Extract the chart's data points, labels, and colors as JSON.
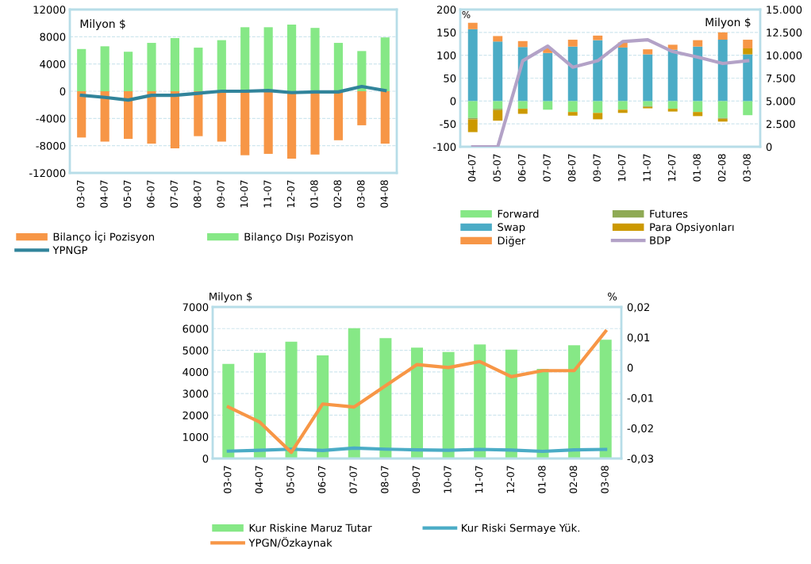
{
  "chart_data": [
    {
      "type": "bar",
      "stacked": true,
      "ylabel": "Milyon $",
      "categories": [
        "03-07",
        "04-07",
        "05-07",
        "06-07",
        "07-07",
        "08-07",
        "09-07",
        "10-07",
        "11-07",
        "12-07",
        "01-08",
        "02-08",
        "03-08",
        "04-08"
      ],
      "series": [
        {
          "name": "Bilanço İçi Pozisyon",
          "color": "#f79646",
          "values": [
            -6800,
            -7400,
            -7000,
            -7700,
            -8400,
            -6600,
            -7400,
            -9400,
            -9200,
            -9900,
            -9300,
            -7200,
            -5000,
            -7700
          ]
        },
        {
          "name": "Bilanço Dışı Pozisyon",
          "color": "#86e886",
          "values": [
            6200,
            6600,
            5800,
            7100,
            7800,
            6400,
            7500,
            9400,
            9400,
            9800,
            9300,
            7100,
            5900,
            7900
          ]
        },
        {
          "name": "YPNGP",
          "type": "line",
          "color": "#31849b",
          "values": [
            -600,
            -900,
            -1300,
            -600,
            -600,
            -300,
            0,
            0,
            100,
            -200,
            -100,
            -100,
            700,
            100
          ]
        }
      ],
      "ylim": [
        -12000,
        12000
      ],
      "yticks": [
        -12000,
        -8000,
        -4000,
        0,
        4000,
        8000,
        12000
      ],
      "grid": "y",
      "legend": "bottom",
      "marker": "none",
      "line_style": "solid"
    },
    {
      "type": "bar",
      "stacked": true,
      "ylabel": "%",
      "y2label": "Milyon $",
      "categories": [
        "04-07",
        "05-07",
        "06-07",
        "07-07",
        "08-07",
        "09-07",
        "10-07",
        "11-07",
        "12-07",
        "01-08",
        "02-08",
        "03-08"
      ],
      "series": [
        {
          "name": "Forward",
          "color": "#86e886",
          "values": [
            -37,
            -17,
            -17,
            -19,
            -24,
            -26,
            -19,
            -11,
            -17,
            -24,
            -37,
            -31
          ]
        },
        {
          "name": "Futures",
          "color": "#8faa55",
          "values": [
            -3,
            -3,
            null,
            null,
            null,
            null,
            null,
            -2,
            null,
            null,
            -2,
            null
          ]
        },
        {
          "name": "Swap",
          "color": "#4bacc6",
          "values": [
            157,
            130,
            118,
            105,
            119,
            133,
            117,
            102,
            112,
            119,
            134,
            102
          ]
        },
        {
          "name": "Para Opsiyonları",
          "color": "#cc9900",
          "values": [
            -28,
            -23,
            -11,
            null,
            -8,
            -14,
            -7,
            -3,
            -6,
            -9,
            -6,
            13
          ]
        },
        {
          "name": "Diğer",
          "color": "#f79646",
          "values": [
            14,
            12,
            13,
            11,
            15,
            10,
            11,
            11,
            11,
            14,
            16,
            19
          ]
        },
        {
          "name": "BDP",
          "type": "line",
          "axis": "y2",
          "color": "#b3a2c7",
          "values": [
            0,
            0,
            9400,
            11000,
            8700,
            9400,
            11500,
            11700,
            10400,
            9800,
            9100,
            9400
          ]
        }
      ],
      "ylim": [
        -100,
        200
      ],
      "yticks": [
        -100,
        -50,
        0,
        50,
        100,
        150,
        200
      ],
      "y2lim": [
        0,
        15000
      ],
      "y2ticks": [
        0,
        {
          "value": 2500,
          "label": "2.500"
        },
        {
          "value": 5000,
          "label": "5.000"
        },
        {
          "value": 7500,
          "label": "7.500"
        },
        {
          "value": 10000,
          "label": "10.000"
        },
        {
          "value": 12500,
          "label": "12.500"
        },
        {
          "value": 15000,
          "label": "15.000"
        }
      ],
      "grid": "y",
      "legend": "bottom",
      "marker": "none",
      "line_style": "solid"
    },
    {
      "type": "bar",
      "ylabel": "Milyon $",
      "y2label": "%",
      "categories": [
        "03-07",
        "04-07",
        "05-07",
        "06-07",
        "07-07",
        "08-07",
        "09-07",
        "10-07",
        "11-07",
        "12-07",
        "01-08",
        "02-08",
        "03-08"
      ],
      "series": [
        {
          "name": "Kur Riskine Maruz Tutar",
          "color": "#86e886",
          "values": [
            4370,
            4880,
            5400,
            4760,
            6020,
            5560,
            5120,
            4920,
            5270,
            5030,
            4140,
            5230,
            5490
          ]
        },
        {
          "name": "Kur Riski Sermaye Yük.",
          "type": "line",
          "color": "#4bacc6",
          "values": [
            340,
            380,
            430,
            370,
            480,
            430,
            400,
            380,
            420,
            390,
            330,
            400,
            420
          ]
        },
        {
          "name": "YPGN/Özkaynak",
          "type": "line",
          "axis": "y2",
          "color": "#f79646",
          "values": [
            -0.013,
            -0.018,
            -0.028,
            -0.012,
            -0.013,
            -0.006,
            0.001,
            0.0,
            0.002,
            -0.003,
            -0.001,
            -0.001,
            0.012
          ]
        }
      ],
      "ylim": [
        0,
        7000
      ],
      "yticks": [
        0,
        1000,
        2000,
        3000,
        4000,
        5000,
        6000,
        7000
      ],
      "y2lim": [
        -0.03,
        0.02
      ],
      "y2ticks": [
        {
          "value": -0.03,
          "label": "-0,03"
        },
        {
          "value": -0.02,
          "label": "-0,02"
        },
        {
          "value": -0.01,
          "label": "-0,01"
        },
        0,
        {
          "value": 0.01,
          "label": "0,01"
        },
        {
          "value": 0.02,
          "label": "0,02"
        }
      ],
      "grid": "y",
      "legend": "bottom",
      "marker": "none",
      "line_style": "solid"
    }
  ]
}
